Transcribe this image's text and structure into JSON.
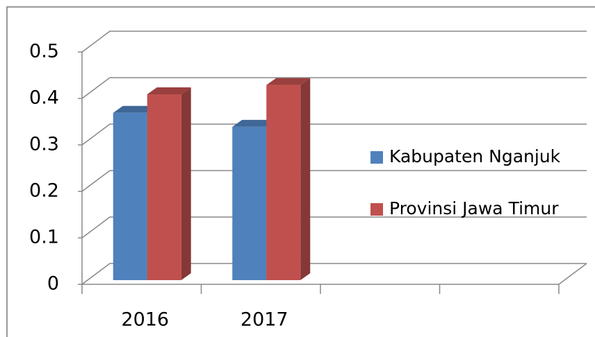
{
  "chart_data": {
    "type": "bar3d",
    "categories": [
      "2016",
      "2017",
      null,
      null
    ],
    "series": [
      {
        "name": "Kabupaten Nganjuk",
        "color": "#4f81bd",
        "values": [
          0.36,
          0.33,
          null,
          null
        ]
      },
      {
        "name": "Provinsi Jawa Timur",
        "color": "#c0504d",
        "values": [
          0.4,
          0.42,
          null,
          null
        ]
      }
    ],
    "ylim": [
      0,
      0.5
    ],
    "yticks": [
      0,
      0.1,
      0.2,
      0.3,
      0.4,
      0.5
    ],
    "grid": true,
    "legend": "right"
  }
}
